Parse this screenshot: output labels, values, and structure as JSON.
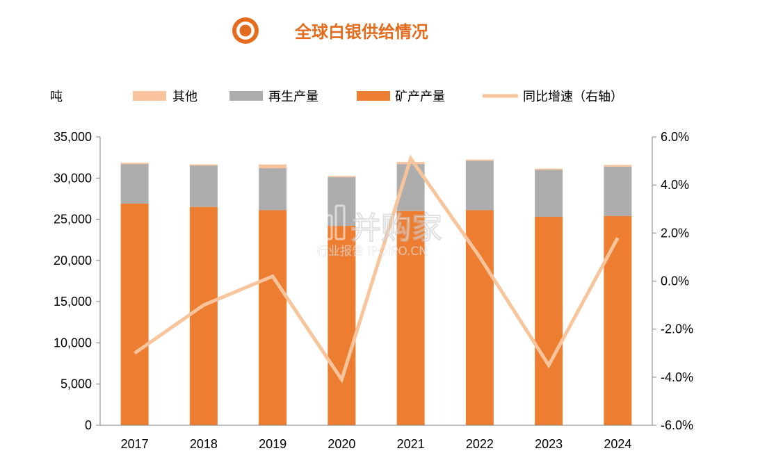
{
  "header": {
    "title": "全球白银供给情况",
    "icon": "bullseye-icon"
  },
  "colors": {
    "accent": "#E36C1F",
    "mine": "#ED7D31",
    "recycle": "#ADADAD",
    "other": "#F8C39C",
    "line": "#F7C49B",
    "axis": "#7F7F7F"
  },
  "watermark": {
    "brand": "并购家",
    "sub": "行业报告 IPOIPO.CN"
  },
  "chart_data": {
    "type": "bar",
    "stacked": true,
    "categories": [
      "2017",
      "2018",
      "2019",
      "2020",
      "2021",
      "2022",
      "2023",
      "2024"
    ],
    "y_unit_label": "吨",
    "ylim": [
      0,
      35000
    ],
    "y_ticks": [
      "0",
      "5,000",
      "10,000",
      "15,000",
      "20,000",
      "25,000",
      "30,000",
      "35,000"
    ],
    "y2lim": [
      -6.0,
      6.0
    ],
    "y2_ticks": [
      "-6.0%",
      "-4.0%",
      "-2.0%",
      "0.0%",
      "2.0%",
      "4.0%",
      "6.0%"
    ],
    "legend_position": "top",
    "series": [
      {
        "name": "矿产产量",
        "kind": "bar",
        "color_key": "mine",
        "values": [
          26900,
          26500,
          26100,
          24200,
          26000,
          26100,
          25300,
          25400
        ]
      },
      {
        "name": "再生产量",
        "kind": "bar",
        "color_key": "recycle",
        "values": [
          4800,
          5000,
          5100,
          5900,
          5700,
          6000,
          5700,
          6000
        ]
      },
      {
        "name": "其他",
        "kind": "bar",
        "color_key": "other",
        "values": [
          150,
          150,
          450,
          150,
          250,
          150,
          150,
          200
        ]
      },
      {
        "name": "同比增速（右轴）",
        "kind": "line",
        "axis": "right",
        "color_key": "line",
        "values": [
          -3.0,
          -1.0,
          0.2,
          -4.1,
          5.1,
          1.0,
          -3.5,
          1.8
        ]
      }
    ],
    "legend_order": [
      "其他",
      "再生产量",
      "矿产产量",
      "同比增速（右轴）"
    ]
  }
}
